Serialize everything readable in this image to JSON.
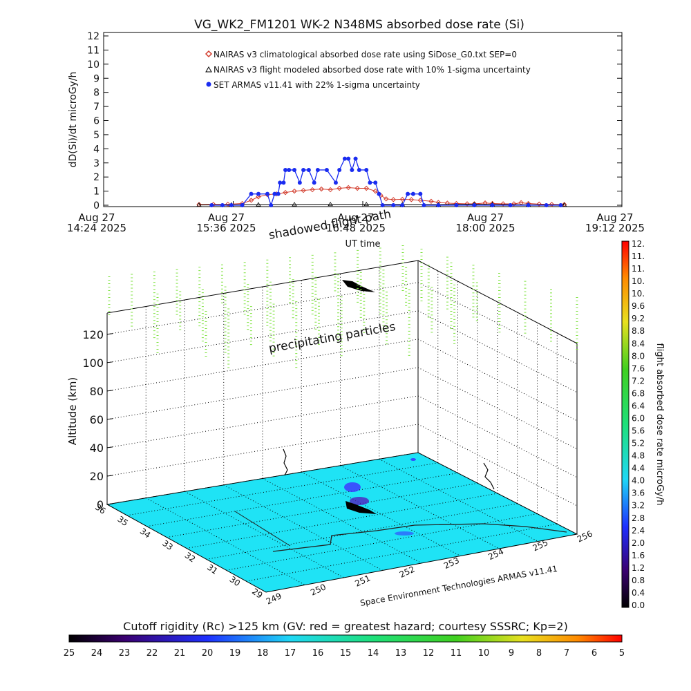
{
  "chart_data": [
    {
      "type": "line",
      "title": "VG_WK2_FM1201   WK-2 N348MS absorbed dose rate (Si)",
      "xlabel": "UT time",
      "ylabel": "dD(Si)/dt microGy/h",
      "ylim": [
        0,
        12
      ],
      "yticks": [
        "0",
        "1",
        "2",
        "3",
        "4",
        "5",
        "6",
        "7",
        "8",
        "9",
        "10",
        "11",
        "12"
      ],
      "xlim_minutes": [
        864,
        1152
      ],
      "xticks": [
        {
          "minute": 864,
          "line1": "Aug 27",
          "line2": "14:24 2025"
        },
        {
          "minute": 936,
          "line1": "Aug 27",
          "line2": "15:36 2025"
        },
        {
          "minute": 1008,
          "line1": "Aug 27",
          "line2": "16:48 2025"
        },
        {
          "minute": 1080,
          "line1": "Aug 27",
          "line2": "18:00 2025"
        },
        {
          "minute": 1152,
          "line1": "Aug 27",
          "line2": "19:12 2025"
        }
      ],
      "legend_placement": "top",
      "legend": [
        "NAIRAS v3 climatological absorbed dose rate using SiDose_G0.txt SEP=0",
        "NAIRAS v3 flight modeled absorbed dose rate with 10% 1-sigma uncertainty",
        "SET ARMAS v11.41 with 22% 1-sigma uncertainty"
      ],
      "series": [
        {
          "name": "NAIRAS v3 climatological absorbed dose rate using SiDose_G0.txt SEP=0",
          "color": "#d23a2a",
          "points": [
            [
              917,
              0.05
            ],
            [
              925,
              0.06
            ],
            [
              933,
              0.07
            ],
            [
              941,
              0.12
            ],
            [
              946,
              0.35
            ],
            [
              950,
              0.6
            ],
            [
              955,
              0.75
            ],
            [
              960,
              0.8
            ],
            [
              965,
              0.9
            ],
            [
              970,
              1.0
            ],
            [
              975,
              1.05
            ],
            [
              980,
              1.1
            ],
            [
              985,
              1.15
            ],
            [
              990,
              1.1
            ],
            [
              995,
              1.2
            ],
            [
              1000,
              1.25
            ],
            [
              1005,
              1.2
            ],
            [
              1010,
              1.2
            ],
            [
              1015,
              1.0
            ],
            [
              1018,
              0.7
            ],
            [
              1021,
              0.45
            ],
            [
              1025,
              0.4
            ],
            [
              1030,
              0.42
            ],
            [
              1035,
              0.4
            ],
            [
              1040,
              0.35
            ],
            [
              1046,
              0.28
            ],
            [
              1050,
              0.2
            ],
            [
              1055,
              0.15
            ],
            [
              1060,
              0.12
            ],
            [
              1066,
              0.1
            ],
            [
              1070,
              0.1
            ],
            [
              1076,
              0.16
            ],
            [
              1080,
              0.12
            ],
            [
              1086,
              0.1
            ],
            [
              1092,
              0.1
            ],
            [
              1096,
              0.18
            ],
            [
              1100,
              0.12
            ],
            [
              1106,
              0.08
            ],
            [
              1113,
              0.06
            ],
            [
              1120,
              0.05
            ]
          ]
        },
        {
          "name": "NAIRAS v3 flight modeled absorbed dose rate with 10% 1-sigma uncertainty",
          "color": "#000000",
          "points": [
            [
              917,
              0.02
            ],
            [
              935,
              0.03
            ],
            [
              950,
              0.04
            ],
            [
              970,
              0.05
            ],
            [
              990,
              0.06
            ],
            [
              1010,
              0.06
            ],
            [
              1030,
              0.05
            ],
            [
              1050,
              0.04
            ],
            [
              1070,
              0.08
            ],
            [
              1080,
              0.05
            ],
            [
              1100,
              0.03
            ],
            [
              1120,
              0.02
            ]
          ]
        },
        {
          "name": "SET ARMAS v11.41 with 22% 1-sigma uncertainty",
          "color": "#1a2cf0",
          "points": [
            [
              924,
              0
            ],
            [
              930,
              0
            ],
            [
              935,
              0
            ],
            [
              941,
              0
            ],
            [
              946,
              0.8
            ],
            [
              950,
              0.8
            ],
            [
              955,
              0.8
            ],
            [
              957,
              0
            ],
            [
              959,
              0.8
            ],
            [
              961,
              0.8
            ],
            [
              962,
              1.6
            ],
            [
              964,
              1.6
            ],
            [
              965,
              2.5
            ],
            [
              967,
              2.5
            ],
            [
              970,
              2.5
            ],
            [
              973,
              1.6
            ],
            [
              975,
              2.5
            ],
            [
              978,
              2.5
            ],
            [
              981,
              1.6
            ],
            [
              983,
              2.5
            ],
            [
              988,
              2.5
            ],
            [
              993,
              1.6
            ],
            [
              995,
              2.5
            ],
            [
              998,
              3.3
            ],
            [
              1000,
              3.3
            ],
            [
              1002,
              2.5
            ],
            [
              1004,
              3.3
            ],
            [
              1006,
              2.5
            ],
            [
              1010,
              2.5
            ],
            [
              1012,
              1.6
            ],
            [
              1015,
              1.6
            ],
            [
              1017,
              0.8
            ],
            [
              1019,
              0
            ],
            [
              1025,
              0
            ],
            [
              1030,
              0
            ],
            [
              1033,
              0.8
            ],
            [
              1036,
              0.8
            ],
            [
              1040,
              0.8
            ],
            [
              1042,
              0
            ],
            [
              1050,
              0
            ],
            [
              1060,
              0
            ],
            [
              1070,
              0
            ],
            [
              1080,
              0
            ],
            [
              1090,
              0
            ],
            [
              1100,
              0
            ],
            [
              1110,
              0
            ],
            [
              1118,
              0
            ]
          ]
        }
      ]
    },
    {
      "type": "scatter",
      "subtype": "3d-flight-path",
      "ylabel": "Altitude (km)",
      "zticks": [
        "0",
        "20",
        "40",
        "60",
        "80",
        "100",
        "120"
      ],
      "zlim": [
        0,
        135
      ],
      "lat_ticks": [
        "29",
        "30",
        "31",
        "32",
        "33",
        "34",
        "35",
        "36"
      ],
      "lon_ticks": [
        "249",
        "250",
        "251",
        "252",
        "253",
        "254",
        "255",
        "256"
      ],
      "annotations": [
        "shadowed flight path",
        "precipitating particles"
      ],
      "credit": "Space Environment Technologies ARMAS v11.41",
      "surface_color": "#1fe3f5",
      "particle_color": "#7ee23f",
      "colorbar": {
        "label": "flight absorbed dose rate microGy/h",
        "ticks": [
          "0.0",
          "0.4",
          "0.8",
          "1.2",
          "1.6",
          "2.0",
          "2.4",
          "2.8",
          "3.2",
          "3.6",
          "4.0",
          "4.4",
          "4.8",
          "5.2",
          "5.6",
          "6.0",
          "6.4",
          "6.8",
          "7.2",
          "7.6",
          "8.0",
          "8.4",
          "8.8",
          "9.2",
          "9.6",
          "10.",
          "10.",
          "11.",
          "11.",
          "12."
        ]
      }
    },
    {
      "type": "heatmap",
      "subtype": "colorbar",
      "title": "Cutoff rigidity (Rc) >125 km (GV: red = greatest hazard; courtesy SSSRC; Kp=2)",
      "ticks": [
        "25",
        "24",
        "23",
        "22",
        "21",
        "20",
        "19",
        "18",
        "17",
        "16",
        "15",
        "14",
        "13",
        "12",
        "11",
        "10",
        "9",
        "8",
        "7",
        "6",
        "5"
      ]
    }
  ]
}
